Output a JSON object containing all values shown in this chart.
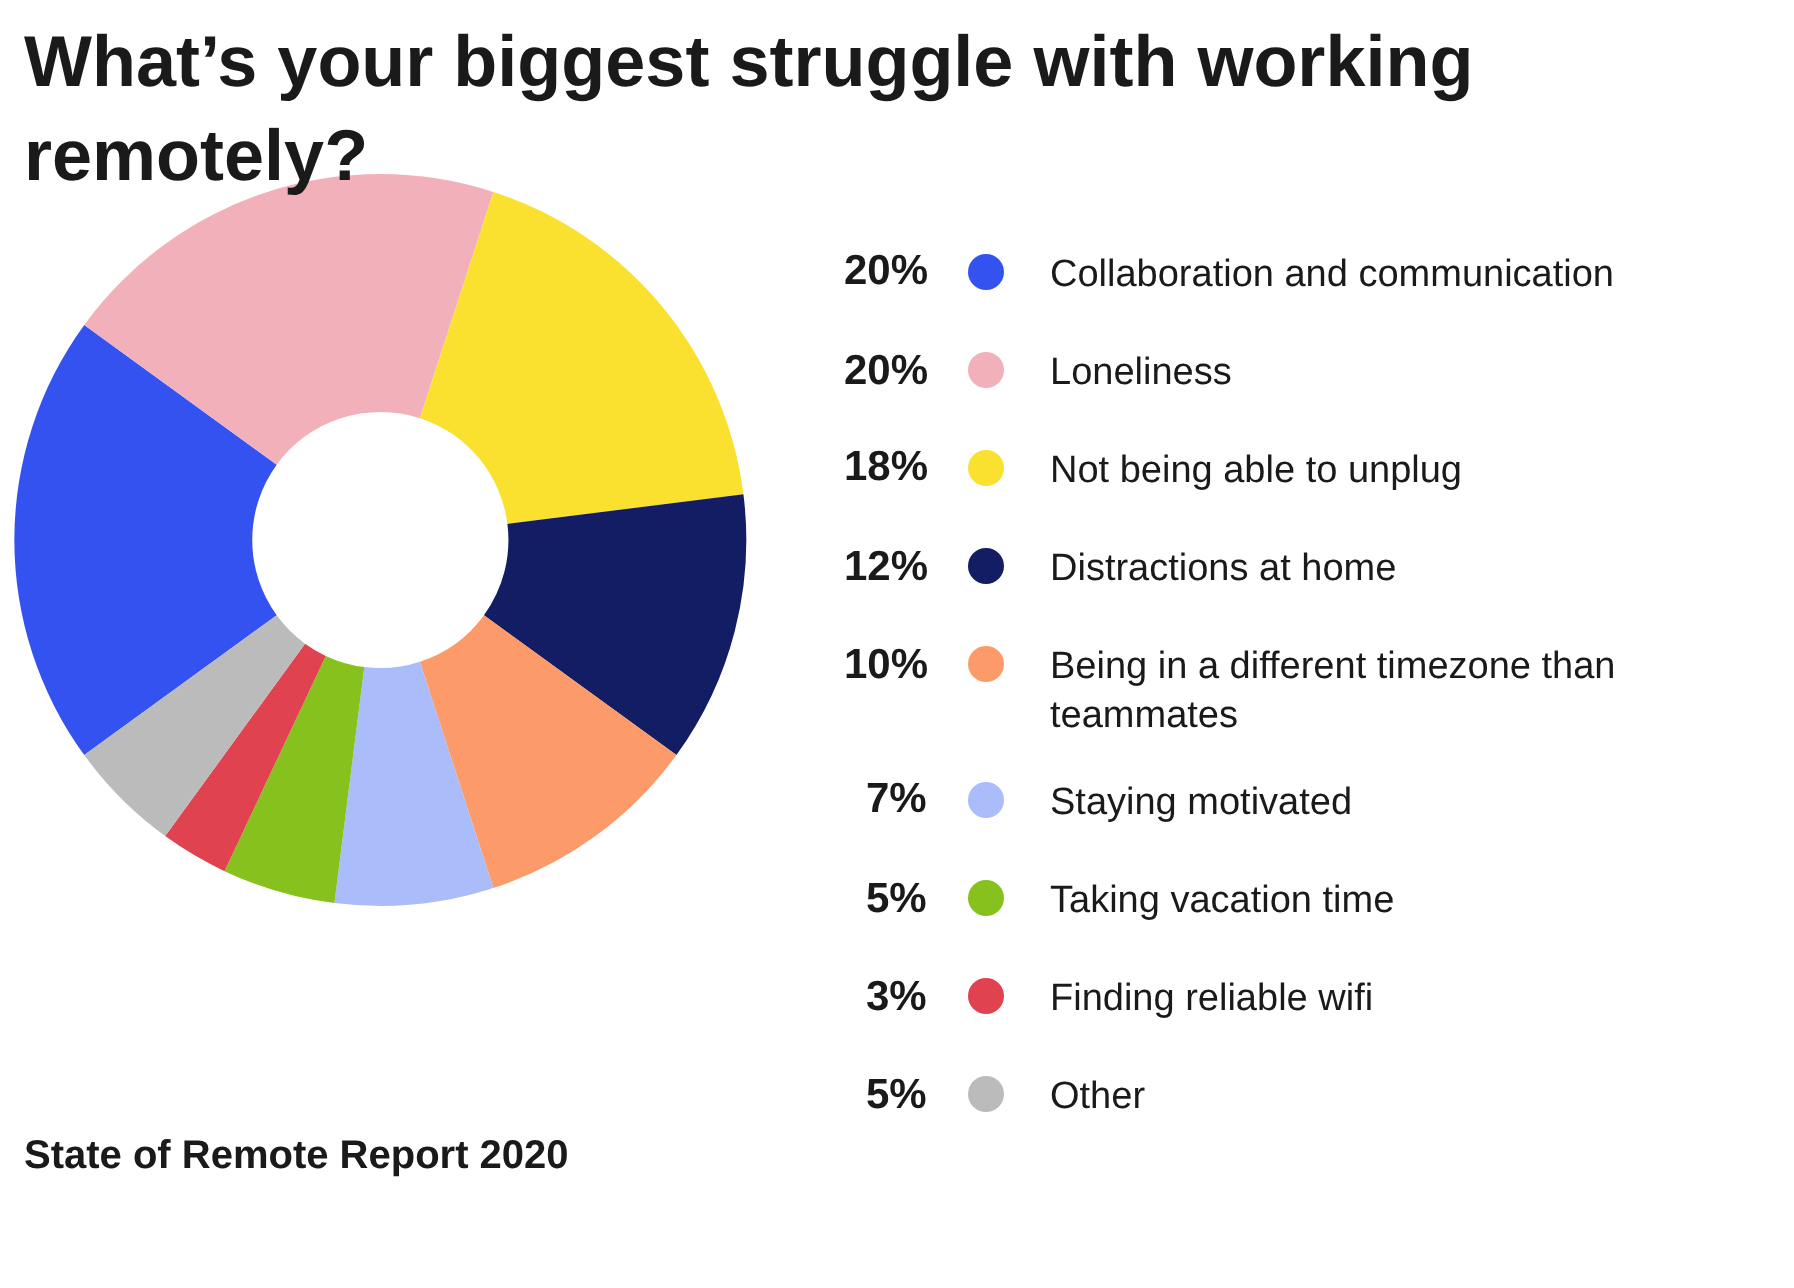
{
  "chart_data": {
    "type": "donut",
    "title": "What’s your biggest struggle with working remotely?",
    "categories": [
      "Collaboration and communication",
      "Loneliness",
      "Not being able to unplug",
      "Distractions at home",
      "Being in a different timezone than teammates",
      "Staying motivated",
      "Taking vacation time",
      "Finding reliable wifi",
      "Other"
    ],
    "values": [
      20,
      20,
      18,
      12,
      10,
      7,
      5,
      3,
      5
    ],
    "value_labels": [
      "20%",
      "20%",
      "18%",
      "12%",
      "10%",
      "7%",
      "5%",
      "3%",
      "5%"
    ],
    "colors": [
      "#3352f0",
      "#f2b0bb",
      "#fbe12f",
      "#131d63",
      "#fd9a6a",
      "#aabcf9",
      "#86c11e",
      "#e0434f",
      "#bbbbbb"
    ],
    "legend": "right",
    "annotations": [
      "State of Remote Report 2020"
    ]
  }
}
